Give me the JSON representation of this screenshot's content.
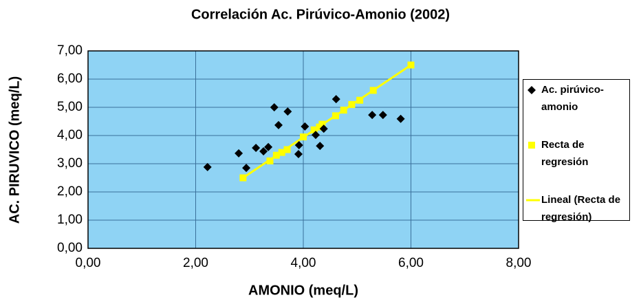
{
  "chart_data": {
    "type": "scatter",
    "title": "Correlación Ac. Pirúvico-Amonio (2002)",
    "x_label": "AMONIO (meq/L)",
    "y_label": "AC. PIRUVICO (meq/L)",
    "xlim": [
      0,
      8
    ],
    "ylim": [
      0,
      7
    ],
    "xticks": [
      {
        "value": 0,
        "label": "0,00"
      },
      {
        "value": 2,
        "label": "2,00"
      },
      {
        "value": 4,
        "label": "4,00"
      },
      {
        "value": 6,
        "label": "6,00"
      },
      {
        "value": 8,
        "label": "8,00"
      }
    ],
    "yticks": [
      {
        "value": 0,
        "label": "0,00"
      },
      {
        "value": 1,
        "label": "1,00"
      },
      {
        "value": 2,
        "label": "2,00"
      },
      {
        "value": 3,
        "label": "3,00"
      },
      {
        "value": 4,
        "label": "4,00"
      },
      {
        "value": 5,
        "label": "5,00"
      },
      {
        "value": 6,
        "label": "6,00"
      },
      {
        "value": 7,
        "label": "7,00"
      }
    ],
    "grid": true,
    "plot_background": "#8fd3f4",
    "grid_color": "#3a6f9a",
    "legend": "right",
    "series": [
      {
        "name": "Ac. pirúvico-amonio",
        "color": "#000000",
        "marker": "diamond",
        "x": [
          2.22,
          2.8,
          2.94,
          3.12,
          3.26,
          3.35,
          3.46,
          3.54,
          3.71,
          3.91,
          3.92,
          4.03,
          4.23,
          4.31,
          4.38,
          4.61,
          5.28,
          5.48,
          5.81
        ],
        "values": [
          2.88,
          3.37,
          2.85,
          3.56,
          3.44,
          3.59,
          5.0,
          4.37,
          4.85,
          3.34,
          3.66,
          4.32,
          4.02,
          3.63,
          4.24,
          5.29,
          4.73,
          4.73,
          4.59
        ]
      },
      {
        "name": "Recta de regresión",
        "color": "#ffff00",
        "marker": "square",
        "x": [
          2.88,
          3.38,
          3.5,
          3.6,
          3.7,
          4.0,
          4.2,
          4.3,
          4.35,
          4.6,
          4.75,
          4.9,
          5.05,
          5.3,
          6.0
        ],
        "values": [
          2.5,
          3.1,
          3.3,
          3.4,
          3.5,
          3.95,
          4.2,
          4.3,
          4.4,
          4.7,
          4.9,
          5.1,
          5.25,
          5.6,
          6.5
        ]
      },
      {
        "name": "Lineal (Recta de regresión)",
        "color": "#ffff00",
        "marker": "line",
        "x": [
          2.88,
          6.0
        ],
        "values": [
          2.5,
          6.5
        ]
      }
    ]
  }
}
